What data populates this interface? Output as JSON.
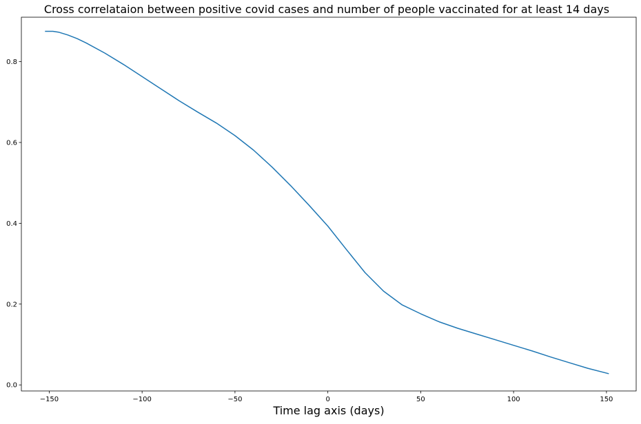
{
  "chart_data": {
    "type": "line",
    "title": "Cross correlataion between positive covid cases and number of people vaccinated for at least 14 days",
    "xlabel": "Time lag axis (days)",
    "ylabel": "",
    "xlim": [
      -165,
      166
    ],
    "ylim": [
      -0.015,
      0.91
    ],
    "xticks": [
      -150,
      -100,
      -50,
      0,
      50,
      100,
      150
    ],
    "xtick_labels": [
      "−150",
      "−100",
      "−50",
      "0",
      "50",
      "100",
      "150"
    ],
    "yticks": [
      0.0,
      0.2,
      0.4,
      0.6,
      0.8
    ],
    "ytick_labels": [
      "0.0",
      "0.2",
      "0.4",
      "0.6",
      "0.8"
    ],
    "grid": false,
    "series": [
      {
        "color": "#1f77b4",
        "x": [
          -152,
          -148,
          -145,
          -140,
          -135,
          -130,
          -120,
          -110,
          -100,
          -90,
          -80,
          -70,
          -60,
          -50,
          -40,
          -30,
          -20,
          -10,
          0,
          10,
          20,
          30,
          40,
          50,
          60,
          70,
          80,
          90,
          100,
          110,
          120,
          130,
          140,
          151
        ],
        "y": [
          0.875,
          0.875,
          0.873,
          0.866,
          0.857,
          0.846,
          0.821,
          0.793,
          0.763,
          0.733,
          0.703,
          0.675,
          0.648,
          0.617,
          0.581,
          0.539,
          0.493,
          0.444,
          0.393,
          0.335,
          0.278,
          0.232,
          0.198,
          0.176,
          0.156,
          0.14,
          0.126,
          0.112,
          0.098,
          0.084,
          0.069,
          0.055,
          0.041,
          0.028
        ]
      }
    ]
  }
}
